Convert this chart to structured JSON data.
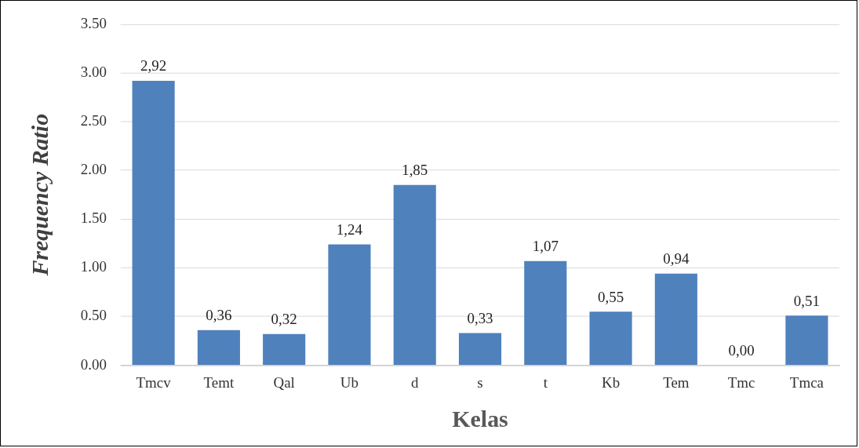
{
  "chart_data": {
    "type": "bar",
    "xlabel": "Kelas",
    "ylabel": "Frequency Ratio",
    "categories": [
      "Tmcv",
      "Temt",
      "Qal",
      "Ub",
      "d",
      "s",
      "t",
      "Kb",
      "Tem",
      "Tmc",
      "Tmca"
    ],
    "values": [
      2.92,
      0.36,
      0.32,
      1.24,
      1.85,
      0.33,
      1.07,
      0.55,
      0.94,
      0.0,
      0.51
    ],
    "value_labels": [
      "2,92",
      "0,36",
      "0,32",
      "1,24",
      "1,85",
      "0,33",
      "1,07",
      "0,55",
      "0,94",
      "0,00",
      "0,51"
    ],
    "color": "#4f81bd",
    "ylim": [
      0,
      3.5
    ],
    "yticks": [
      {
        "value": 0,
        "label": "0.00"
      },
      {
        "value": 0.5,
        "label": "0.50"
      },
      {
        "value": 1,
        "label": "1.00"
      },
      {
        "value": 1.5,
        "label": "1.50"
      },
      {
        "value": 2,
        "label": "2.00"
      },
      {
        "value": 2.5,
        "label": "2.50"
      },
      {
        "value": 3,
        "label": "3.00"
      },
      {
        "value": 3.5,
        "label": "3.50"
      }
    ],
    "grid": "y",
    "legend": false
  }
}
